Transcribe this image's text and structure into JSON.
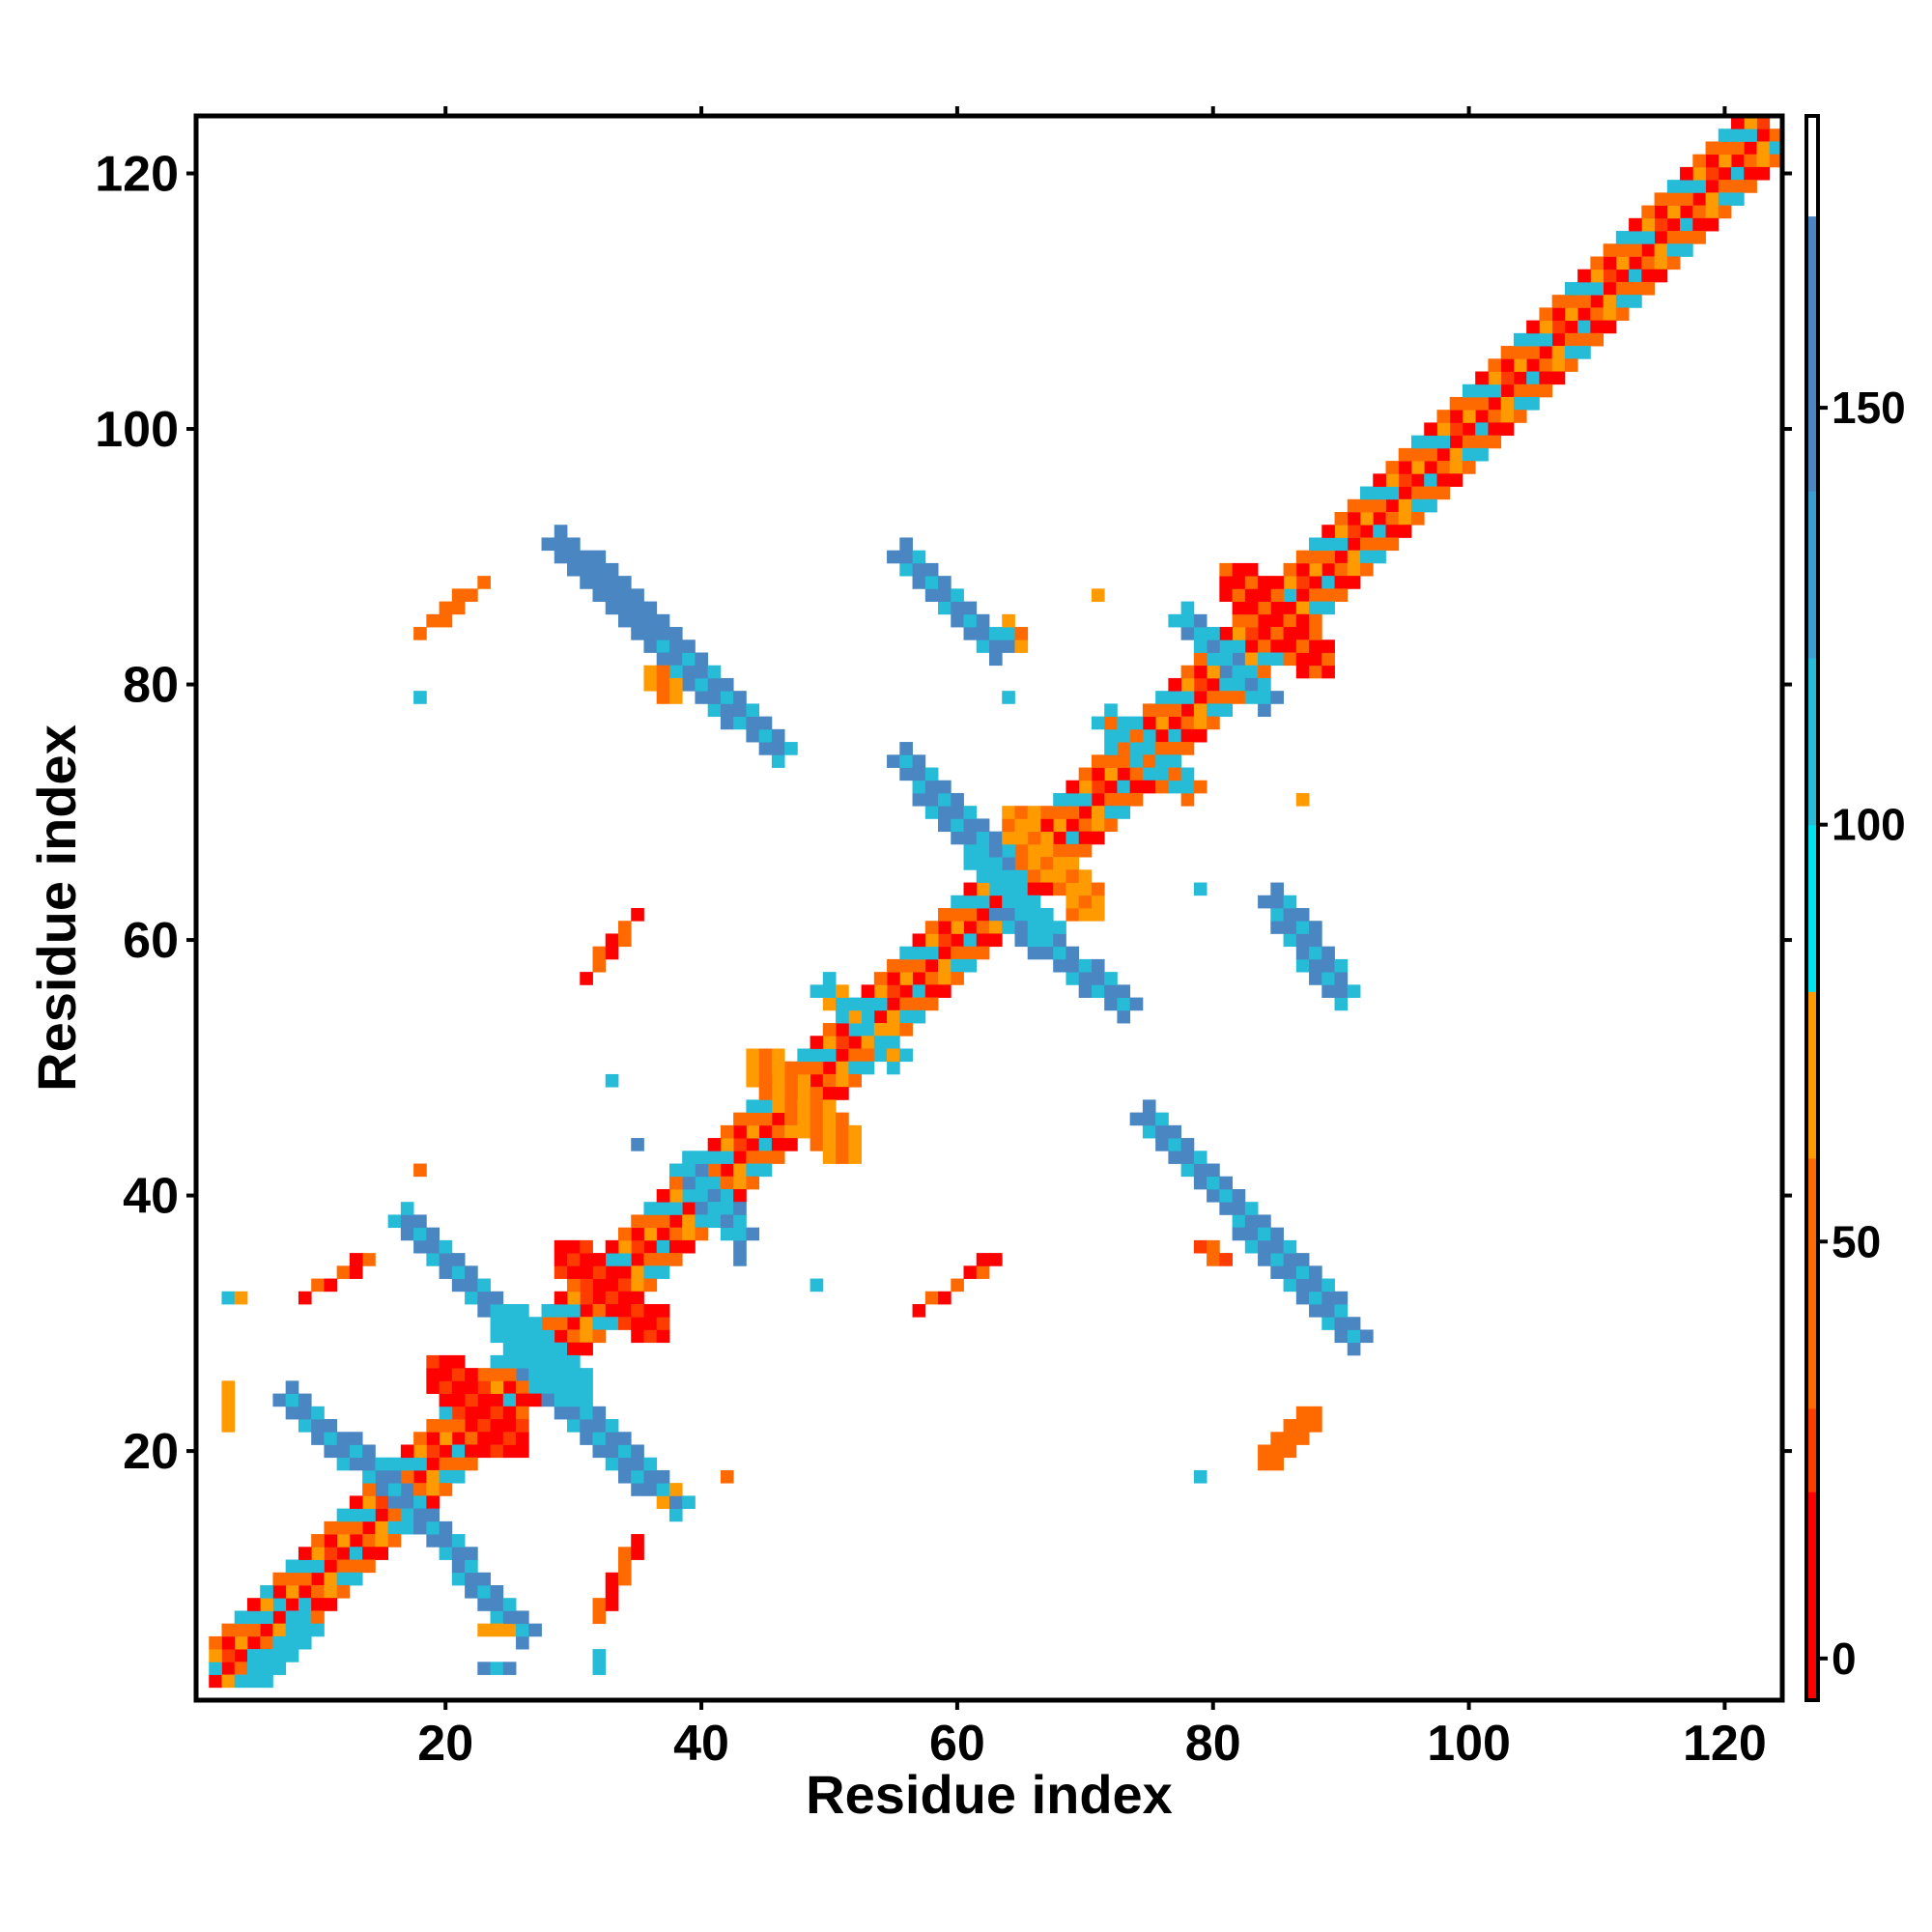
{
  "chart_data": {
    "type": "heatmap",
    "title": "",
    "xlabel": "Residue index",
    "ylabel": "Residue index",
    "xlim": [
      1,
      124
    ],
    "ylim": [
      1,
      124
    ],
    "x_ticks": [
      "20",
      "40",
      "60",
      "80",
      "100",
      "120"
    ],
    "y_ticks": [
      "20",
      "40",
      "60",
      "80",
      "100",
      "120"
    ],
    "grid": false,
    "colorbar": {
      "position": "right",
      "range": [
        -5,
        185
      ],
      "ticks": [
        "0",
        "50",
        "100",
        "150"
      ],
      "bands": [
        {
          "from": -5,
          "to": 20,
          "color": "#ff0000"
        },
        {
          "from": 20,
          "to": 30,
          "color": "#ff3c00"
        },
        {
          "from": 30,
          "to": 60,
          "color": "#ff6a00"
        },
        {
          "from": 60,
          "to": 80,
          "color": "#ff9a00"
        },
        {
          "from": 80,
          "to": 100,
          "color": "#00e1ee"
        },
        {
          "from": 100,
          "to": 120,
          "color": "#26bcd8"
        },
        {
          "from": 120,
          "to": 140,
          "color": "#3b9ed0"
        },
        {
          "from": 140,
          "to": 173,
          "color": "#4a86c2"
        },
        {
          "from": 173,
          "to": 185,
          "color": "#ffffff"
        }
      ]
    },
    "series": [
      {
        "from": [
          2,
          2
        ],
        "to": [
          123,
          123
        ],
        "width": 1.0,
        "values": [
          10,
          40,
          30
        ]
      },
      {
        "from": [
          2,
          3
        ],
        "to": [
          123,
          124
        ],
        "width": 1.0,
        "values": [
          100,
          40,
          60,
          20
        ]
      },
      {
        "from": [
          3,
          2
        ],
        "to": [
          124,
          123
        ],
        "width": 1.0,
        "values": [
          40,
          100,
          30,
          60
        ]
      },
      {
        "from": [
          2,
          4
        ],
        "to": [
          122,
          124
        ],
        "width": 1.0,
        "values": [
          40,
          10,
          60,
          100
        ]
      },
      {
        "from": [
          4,
          2
        ],
        "to": [
          124,
          122
        ],
        "width": 1.0,
        "values": [
          100,
          60,
          10,
          40
        ]
      },
      {
        "from": [
          2,
          5
        ],
        "to": [
          121,
          124
        ],
        "width": 1.0,
        "values": [
          40,
          10,
          100,
          30
        ]
      },
      {
        "from": [
          5,
          2
        ],
        "to": [
          124,
          121
        ],
        "width": 1.0,
        "values": [
          30,
          100,
          40,
          10
        ]
      },
      {
        "from": [
          6,
          3
        ],
        "to": [
          9,
          6
        ],
        "width": 2.0,
        "values": [
          100
        ]
      },
      {
        "from": [
          6,
          9
        ],
        "to": [
          9,
          6
        ],
        "width": 1.2,
        "values": [
          100
        ]
      },
      {
        "from": [
          17,
          16
        ],
        "to": [
          26,
          6
        ],
        "width": 2.2,
        "values": [
          145,
          150,
          115
        ]
      },
      {
        "from": [
          8,
          24
        ],
        "to": [
          17,
          16
        ],
        "width": 2.2,
        "values": [
          150,
          145,
          115
        ]
      },
      {
        "from": [
          27,
          26
        ],
        "to": [
          38,
          16
        ],
        "width": 2.6,
        "values": [
          150,
          145,
          115
        ]
      },
      {
        "from": [
          17,
          38
        ],
        "to": [
          27,
          28
        ],
        "width": 2.6,
        "values": [
          150,
          145,
          115
        ]
      },
      {
        "from": [
          25,
          30
        ],
        "to": [
          30,
          25
        ],
        "width": 3.0,
        "values": [
          100,
          115
        ]
      },
      {
        "from": [
          20,
          26
        ],
        "to": [
          25,
          21
        ],
        "width": 3.0,
        "values": [
          10,
          20,
          10
        ]
      },
      {
        "from": [
          30,
          35
        ],
        "to": [
          36,
          30
        ],
        "width": 3.0,
        "values": [
          10,
          20,
          10
        ]
      },
      {
        "from": [
          39,
          42
        ],
        "to": [
          43,
          37
        ],
        "width": 2.6,
        "values": [
          110,
          140,
          100
        ]
      },
      {
        "from": [
          45,
          50
        ],
        "to": [
          51,
          44
        ],
        "width": 3.0,
        "values": [
          60,
          40,
          70,
          30
        ]
      },
      {
        "from": [
          50,
          56
        ],
        "to": [
          55,
          51
        ],
        "width": 2.4,
        "values": [
          100,
          60,
          110
        ]
      },
      {
        "from": [
          29,
          91
        ],
        "to": [
          39,
          82
        ],
        "width": 2.6,
        "values": [
          140,
          145,
          150
        ]
      },
      {
        "from": [
          37,
          83
        ],
        "to": [
          46,
          75
        ],
        "width": 2.4,
        "values": [
          145,
          150,
          115
        ]
      },
      {
        "from": [
          36,
          81
        ],
        "to": [
          38,
          79
        ],
        "width": 1.5,
        "values": [
          60,
          40
        ]
      },
      {
        "from": [
          56,
          90
        ],
        "to": [
          63,
          83
        ],
        "width": 2.4,
        "values": [
          115,
          145,
          150
        ]
      },
      {
        "from": [
          64,
          85
        ],
        "to": [
          65,
          83
        ],
        "width": 1.0,
        "values": [
          60,
          100,
          40
        ]
      },
      {
        "from": [
          56,
          74
        ],
        "to": [
          64,
          65
        ],
        "width": 2.6,
        "values": [
          110,
          150,
          145
        ]
      },
      {
        "from": [
          64,
          62
        ],
        "to": [
          73,
          55
        ],
        "width": 2.4,
        "values": [
          115,
          145,
          150
        ]
      },
      {
        "from": [
          62,
          66
        ],
        "to": [
          67,
          61
        ],
        "width": 2.6,
        "values": [
          110,
          100
        ]
      },
      {
        "from": [
          65,
          69
        ],
        "to": [
          70,
          63
        ],
        "width": 3.0,
        "values": [
          60,
          40,
          75
        ]
      },
      {
        "from": [
          72,
          77
        ],
        "to": [
          78,
          72
        ],
        "width": 2.6,
        "values": [
          110,
          30,
          100
        ]
      },
      {
        "from": [
          78,
          85
        ],
        "to": [
          84,
          79
        ],
        "width": 2.6,
        "values": [
          145,
          100,
          110
        ]
      },
      {
        "from": [
          82,
          88
        ],
        "to": [
          88,
          82
        ],
        "width": 3.0,
        "values": [
          10,
          40,
          10
        ]
      },
      {
        "from": [
          85,
          63
        ],
        "to": [
          90,
          56
        ],
        "width": 2.6,
        "values": [
          145,
          150,
          115
        ]
      },
      {
        "from": [
          75,
          46
        ],
        "to": [
          83,
          38
        ],
        "width": 2.6,
        "values": [
          115,
          145,
          150
        ]
      },
      {
        "from": [
          81,
          40
        ],
        "to": [
          91,
          29
        ],
        "width": 2.6,
        "values": [
          150,
          145,
          115
        ]
      },
      {
        "from": [
          79,
          36
        ],
        "to": [
          81,
          35
        ],
        "width": 1.2,
        "values": [
          40,
          20
        ]
      },
      {
        "from": [
          84,
          19
        ],
        "to": [
          88,
          23
        ],
        "width": 1.4,
        "values": [
          30,
          40
        ]
      },
      {
        "from": [
          18,
          84
        ],
        "to": [
          23,
          88
        ],
        "width": 1.2,
        "values": [
          30,
          40
        ]
      },
      {
        "from": [
          31,
          57
        ],
        "to": [
          35,
          62
        ],
        "width": 1.0,
        "values": [
          40,
          10
        ]
      },
      {
        "from": [
          57,
          31
        ],
        "to": [
          63,
          35
        ],
        "width": 1.0,
        "values": [
          40,
          10
        ]
      },
      {
        "from": [
          9,
          32
        ],
        "to": [
          14,
          35
        ],
        "width": 1.0,
        "values": [
          40,
          10
        ]
      },
      {
        "from": [
          32,
          7
        ],
        "to": [
          35,
          13
        ],
        "width": 1.0,
        "values": [
          40,
          10
        ]
      },
      {
        "from": [
          3,
          32
        ],
        "to": [
          4,
          32
        ],
        "width": 1.0,
        "values": [
          60,
          100
        ]
      },
      {
        "from": [
          3,
          22
        ],
        "to": [
          3,
          25
        ],
        "width": 1.0,
        "values": [
          110,
          60
        ]
      },
      {
        "from": [
          23,
          3
        ],
        "to": [
          25,
          3
        ],
        "width": 1.0,
        "values": [
          100,
          145
        ]
      },
      {
        "from": [
          23,
          6
        ],
        "to": [
          25,
          6
        ],
        "width": 1.0,
        "values": [
          60,
          75
        ]
      },
      {
        "from": [
          37,
          16
        ],
        "to": [
          38,
          17
        ],
        "width": 1.0,
        "values": [
          60,
          75
        ]
      },
      {
        "from": [
          32,
          3
        ],
        "to": [
          32,
          4
        ],
        "width": 1.0,
        "values": [
          100,
          40
        ]
      }
    ],
    "points": [
      {
        "x": 18,
        "y": 42,
        "v": 30
      },
      {
        "x": 18,
        "y": 79,
        "v": 100
      },
      {
        "x": 33,
        "y": 49,
        "v": 100
      },
      {
        "x": 35,
        "y": 44,
        "v": 145
      },
      {
        "x": 43,
        "y": 35,
        "v": 145
      },
      {
        "x": 49,
        "y": 33,
        "v": 110
      },
      {
        "x": 42,
        "y": 18,
        "v": 40
      },
      {
        "x": 35,
        "y": 13,
        "v": 10
      },
      {
        "x": 64,
        "y": 79,
        "v": 100
      },
      {
        "x": 71,
        "y": 87,
        "v": 75
      },
      {
        "x": 79,
        "y": 64,
        "v": 100
      },
      {
        "x": 87,
        "y": 71,
        "v": 75
      },
      {
        "x": 79,
        "y": 18,
        "v": 100
      },
      {
        "x": 13,
        "y": 35,
        "v": 10
      },
      {
        "x": 62,
        "y": 35,
        "v": 10
      }
    ]
  }
}
